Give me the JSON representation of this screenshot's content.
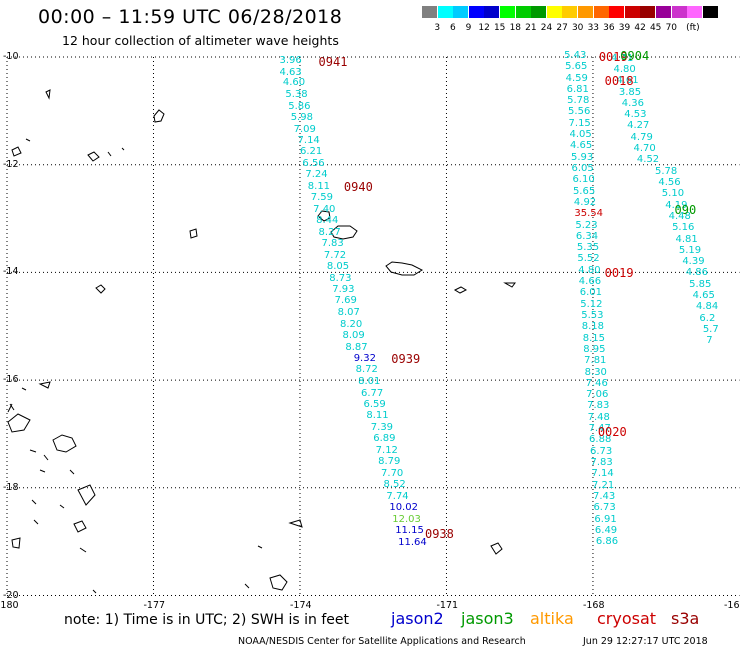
{
  "header": {
    "title": "00:00 – 11:59 UTC 06/28/2018",
    "subtitle": "12 hour collection of altimeter wave heights"
  },
  "legend": {
    "colors": [
      "#808080",
      "#00ffff",
      "#00ccff",
      "#0000ff",
      "#0000cc",
      "#00ff00",
      "#00cc00",
      "#009900",
      "#ffff00",
      "#ffcc00",
      "#ff9900",
      "#ff6600",
      "#ff0000",
      "#cc0000",
      "#990000",
      "#990099",
      "#cc33cc",
      "#ff66ff",
      "#000000"
    ],
    "labels": [
      "3",
      "6",
      "9",
      "12",
      "15",
      "18",
      "21",
      "24",
      "27",
      "30",
      "33",
      "36",
      "39",
      "42",
      "45",
      "70",
      "(ft)"
    ]
  },
  "axes": {
    "x_ticks": [
      {
        "lon": -180,
        "label": "-180"
      },
      {
        "lon": -177,
        "label": "-177"
      },
      {
        "lon": -174,
        "label": "-174"
      },
      {
        "lon": -171,
        "label": "-171"
      },
      {
        "lon": -168,
        "label": "-168"
      },
      {
        "lon": -165,
        "label": "-16"
      }
    ],
    "y_ticks": [
      {
        "lat": -10,
        "label": "-10"
      },
      {
        "lat": -12,
        "label": "-12"
      },
      {
        "lat": -14,
        "label": "-14"
      },
      {
        "lat": -16,
        "label": "-16"
      },
      {
        "lat": -18,
        "label": "-18"
      },
      {
        "lat": -20,
        "label": "-20"
      }
    ]
  },
  "tracks": [
    {
      "color": "#00cccc",
      "points": [
        {
          "lon": -174.42,
          "lat": -10.08,
          "v": "3.96"
        },
        {
          "lon": -174.42,
          "lat": -10.29,
          "v": "4.63"
        },
        {
          "lon": -174.35,
          "lat": -10.49,
          "v": "4.60"
        },
        {
          "lon": -174.3,
          "lat": -10.71,
          "v": "5.38"
        },
        {
          "lon": -174.24,
          "lat": -10.92,
          "v": "5.86"
        },
        {
          "lon": -174.19,
          "lat": -11.13,
          "v": "5.98"
        },
        {
          "lon": -174.13,
          "lat": -11.35,
          "v": "7.09"
        },
        {
          "lon": -174.05,
          "lat": -11.56,
          "v": "7.14"
        },
        {
          "lon": -174.0,
          "lat": -11.77,
          "v": "6.21"
        },
        {
          "lon": -173.95,
          "lat": -11.99,
          "v": "6.56"
        },
        {
          "lon": -173.89,
          "lat": -12.2,
          "v": "7.24"
        },
        {
          "lon": -173.84,
          "lat": -12.41,
          "v": "8.11"
        },
        {
          "lon": -173.78,
          "lat": -12.62,
          "v": "7.59"
        },
        {
          "lon": -173.73,
          "lat": -12.84,
          "v": "7.40"
        },
        {
          "lon": -173.67,
          "lat": -13.05,
          "v": "8.44"
        },
        {
          "lon": -173.62,
          "lat": -13.26,
          "v": "8.27"
        },
        {
          "lon": -173.56,
          "lat": -13.48,
          "v": "7.83"
        },
        {
          "lon": -173.51,
          "lat": -13.69,
          "v": "7.72"
        },
        {
          "lon": -173.45,
          "lat": -13.9,
          "v": "8.05"
        },
        {
          "lon": -173.4,
          "lat": -14.12,
          "v": "8.73"
        },
        {
          "lon": -173.34,
          "lat": -14.33,
          "v": "7.93"
        },
        {
          "lon": -173.29,
          "lat": -14.54,
          "v": "7.69"
        },
        {
          "lon": -173.23,
          "lat": -14.76,
          "v": "8.07"
        },
        {
          "lon": -173.18,
          "lat": -14.97,
          "v": "8.20"
        },
        {
          "lon": -173.13,
          "lat": -15.18,
          "v": "8.09"
        },
        {
          "lon": -173.07,
          "lat": -15.4,
          "v": "8.87"
        }
      ]
    },
    {
      "color": "#0000cc",
      "points": [
        {
          "lon": -172.9,
          "lat": -15.61,
          "v": "9.32"
        }
      ]
    },
    {
      "color": "#00cccc",
      "points": [
        {
          "lon": -172.86,
          "lat": -15.82,
          "v": "8.72"
        },
        {
          "lon": -172.81,
          "lat": -16.04,
          "v": "8.01"
        },
        {
          "lon": -172.75,
          "lat": -16.25,
          "v": "6.77"
        },
        {
          "lon": -172.7,
          "lat": -16.46,
          "v": "6.59"
        },
        {
          "lon": -172.64,
          "lat": -16.67,
          "v": "8.11"
        },
        {
          "lon": -172.55,
          "lat": -16.89,
          "v": "7.39"
        },
        {
          "lon": -172.5,
          "lat": -17.1,
          "v": "6.89"
        },
        {
          "lon": -172.45,
          "lat": -17.31,
          "v": "7.12"
        },
        {
          "lon": -172.4,
          "lat": -17.53,
          "v": "8.79"
        },
        {
          "lon": -172.34,
          "lat": -17.74,
          "v": "7.70"
        },
        {
          "lon": -172.29,
          "lat": -17.95,
          "v": "8.52"
        },
        {
          "lon": -172.23,
          "lat": -18.17,
          "v": "7.74"
        }
      ]
    },
    {
      "color": "#0000cc",
      "points": [
        {
          "lon": -172.17,
          "lat": -18.38,
          "v": "10.02"
        }
      ]
    },
    {
      "color": "#66cc33",
      "points": [
        {
          "lon": -172.11,
          "lat": -18.59,
          "v": "12.03"
        }
      ]
    },
    {
      "color": "#0000cc",
      "points": [
        {
          "lon": -172.05,
          "lat": -18.81,
          "v": "11.15"
        },
        {
          "lon": -171.99,
          "lat": -19.02,
          "v": "11.64"
        }
      ]
    },
    {
      "color": "#00cccc",
      "points": [
        {
          "lon": -168.59,
          "lat": -9.98,
          "v": "5.43"
        },
        {
          "lon": -168.57,
          "lat": -10.19,
          "v": "5.65"
        },
        {
          "lon": -168.56,
          "lat": -10.4,
          "v": "4.59"
        },
        {
          "lon": -168.54,
          "lat": -10.61,
          "v": "6.81"
        },
        {
          "lon": -168.53,
          "lat": -10.82,
          "v": "5.78"
        },
        {
          "lon": -168.51,
          "lat": -11.03,
          "v": "5.56"
        },
        {
          "lon": -168.5,
          "lat": -11.24,
          "v": "7.15"
        },
        {
          "lon": -168.48,
          "lat": -11.45,
          "v": "4.05"
        },
        {
          "lon": -168.47,
          "lat": -11.66,
          "v": "4.65"
        },
        {
          "lon": -168.45,
          "lat": -11.87,
          "v": "5.93"
        },
        {
          "lon": -168.44,
          "lat": -12.08,
          "v": "6.05"
        },
        {
          "lon": -168.42,
          "lat": -12.29,
          "v": "6.10"
        },
        {
          "lon": -168.41,
          "lat": -12.5,
          "v": "5.65"
        },
        {
          "lon": -168.39,
          "lat": -12.71,
          "v": "4.92"
        }
      ]
    },
    {
      "color": "#cc0000",
      "points": [
        {
          "lon": -168.38,
          "lat": -12.92,
          "v": "35.54"
        }
      ]
    },
    {
      "color": "#00cccc",
      "points": [
        {
          "lon": -168.36,
          "lat": -13.13,
          "v": "5.23"
        },
        {
          "lon": -168.35,
          "lat": -13.34,
          "v": "6.34"
        },
        {
          "lon": -168.33,
          "lat": -13.55,
          "v": "5.35"
        },
        {
          "lon": -168.32,
          "lat": -13.76,
          "v": "5.52"
        },
        {
          "lon": -168.3,
          "lat": -13.97,
          "v": "4.80"
        },
        {
          "lon": -168.29,
          "lat": -14.18,
          "v": "4.66"
        },
        {
          "lon": -168.27,
          "lat": -14.39,
          "v": "6.01"
        },
        {
          "lon": -168.26,
          "lat": -14.6,
          "v": "5.12"
        },
        {
          "lon": -168.24,
          "lat": -14.81,
          "v": "5.53"
        },
        {
          "lon": -168.23,
          "lat": -15.02,
          "v": "8.18"
        },
        {
          "lon": -168.21,
          "lat": -15.23,
          "v": "8.15"
        },
        {
          "lon": -168.2,
          "lat": -15.44,
          "v": "8.95"
        },
        {
          "lon": -168.18,
          "lat": -15.65,
          "v": "7.81"
        },
        {
          "lon": -168.17,
          "lat": -15.86,
          "v": "8.30"
        },
        {
          "lon": -168.15,
          "lat": -16.07,
          "v": "7.46"
        },
        {
          "lon": -168.14,
          "lat": -16.28,
          "v": "7.06"
        },
        {
          "lon": -168.12,
          "lat": -16.49,
          "v": "7.83"
        },
        {
          "lon": -168.11,
          "lat": -16.7,
          "v": "7.48"
        },
        {
          "lon": -168.09,
          "lat": -16.91,
          "v": "7.47"
        },
        {
          "lon": -168.08,
          "lat": -17.12,
          "v": "6.88"
        },
        {
          "lon": -168.06,
          "lat": -17.33,
          "v": "6.73"
        },
        {
          "lon": -168.05,
          "lat": -17.54,
          "v": "7.83"
        },
        {
          "lon": -168.03,
          "lat": -17.75,
          "v": "7.14"
        },
        {
          "lon": -168.02,
          "lat": -17.96,
          "v": "7.21"
        },
        {
          "lon": -168.0,
          "lat": -18.17,
          "v": "7.43"
        },
        {
          "lon": -167.99,
          "lat": -18.38,
          "v": "6.73"
        },
        {
          "lon": -167.97,
          "lat": -18.59,
          "v": "6.91"
        },
        {
          "lon": -167.96,
          "lat": -18.8,
          "v": "6.49"
        },
        {
          "lon": -167.94,
          "lat": -19.01,
          "v": "6.86"
        }
      ]
    },
    {
      "color": "#00cccc",
      "points": [
        {
          "lon": -167.63,
          "lat": -10.03,
          "v": "4.71"
        },
        {
          "lon": -167.58,
          "lat": -10.24,
          "v": "4.80"
        },
        {
          "lon": -167.52,
          "lat": -10.45,
          "v": "4.61"
        },
        {
          "lon": -167.47,
          "lat": -10.66,
          "v": "3.85"
        },
        {
          "lon": -167.41,
          "lat": -10.87,
          "v": "4.36"
        },
        {
          "lon": -167.36,
          "lat": -11.08,
          "v": "4.53"
        },
        {
          "lon": -167.3,
          "lat": -11.29,
          "v": "4.27"
        },
        {
          "lon": -167.23,
          "lat": -11.5,
          "v": "4.79"
        },
        {
          "lon": -167.17,
          "lat": -11.71,
          "v": "4.70"
        },
        {
          "lon": -167.1,
          "lat": -11.92,
          "v": "4.52"
        },
        {
          "lon": -166.73,
          "lat": -12.13,
          "v": "5.78"
        },
        {
          "lon": -166.66,
          "lat": -12.34,
          "v": "4.56"
        },
        {
          "lon": -166.59,
          "lat": -12.55,
          "v": "5.10"
        },
        {
          "lon": -166.52,
          "lat": -12.76,
          "v": "4.19"
        },
        {
          "lon": -166.45,
          "lat": -12.97,
          "v": "4.48"
        },
        {
          "lon": -166.38,
          "lat": -13.18,
          "v": "5.16"
        },
        {
          "lon": -166.31,
          "lat": -13.39,
          "v": "4.81"
        },
        {
          "lon": -166.24,
          "lat": -13.6,
          "v": "5.19"
        },
        {
          "lon": -166.17,
          "lat": -13.81,
          "v": "4.39"
        },
        {
          "lon": -166.1,
          "lat": -14.02,
          "v": "4.86"
        },
        {
          "lon": -166.03,
          "lat": -14.23,
          "v": "5.85"
        },
        {
          "lon": -165.96,
          "lat": -14.44,
          "v": "4.65"
        },
        {
          "lon": -165.89,
          "lat": -14.65,
          "v": "4.84"
        },
        {
          "lon": -165.82,
          "lat": -14.86,
          "v": "6.2"
        },
        {
          "lon": -165.75,
          "lat": -15.07,
          "v": "5.7"
        },
        {
          "lon": -165.68,
          "lat": -15.28,
          "v": "7"
        }
      ]
    }
  ],
  "time_labels": [
    {
      "lon": -173.62,
      "lat": -10.09,
      "text": "0941",
      "color": "#990000"
    },
    {
      "lon": -173.1,
      "lat": -12.42,
      "text": "0940",
      "color": "#990000"
    },
    {
      "lon": -172.13,
      "lat": -15.61,
      "text": "0939",
      "color": "#990000"
    },
    {
      "lon": -171.44,
      "lat": -18.85,
      "text": "0938",
      "color": "#990000"
    },
    {
      "lon": -167.88,
      "lat": -10.0,
      "text": "0019",
      "color": "#cc0000"
    },
    {
      "lon": -167.44,
      "lat": -9.99,
      "text": "0904",
      "color": "#009900"
    },
    {
      "lon": -167.76,
      "lat": -10.44,
      "text": "0018",
      "color": "#cc0000"
    },
    {
      "lon": -166.33,
      "lat": -12.84,
      "text": "090",
      "color": "#009900"
    },
    {
      "lon": -167.76,
      "lat": -14.01,
      "text": "0019",
      "color": "#cc0000"
    },
    {
      "lon": -167.9,
      "lat": -16.96,
      "text": "0020",
      "color": "#cc0000"
    }
  ],
  "note": "note: 1) Time is in UTC; 2) SWH is in feet",
  "satellites": [
    {
      "name": "jason2",
      "color": "#0000cc"
    },
    {
      "name": "jason3",
      "color": "#009900"
    },
    {
      "name": "altika",
      "color": "#ff9900"
    },
    {
      "name": "cryosat",
      "color": "#cc0000"
    },
    {
      "name": "s3a",
      "color": "#990000"
    }
  ],
  "footer": {
    "credit": "NOAA/NESDIS Center for Satellite Applications and Research",
    "timestamp": "Jun 29 12:27:17 UTC 2018"
  }
}
